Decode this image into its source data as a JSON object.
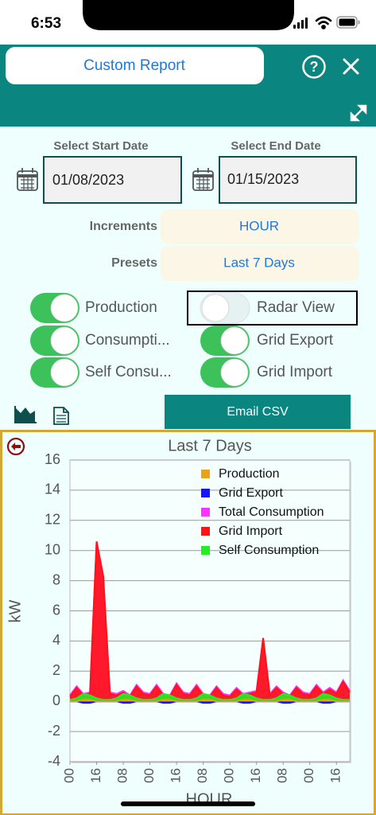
{
  "status_bar": {
    "time": "6:53"
  },
  "header": {
    "title": "Custom Report"
  },
  "form": {
    "start_date_label": "Select Start Date",
    "start_date": "01/08/2023",
    "end_date_label": "Select End Date",
    "end_date": "01/15/2023",
    "increments_label": "Increments",
    "increments": "HOUR",
    "presets_label": "Presets",
    "presets": "Last 7 Days"
  },
  "toggles": [
    {
      "label": "Production",
      "on": true
    },
    {
      "label": "Consumpti...",
      "on": true
    },
    {
      "label": "Self Consu...",
      "on": true
    },
    {
      "label": "Radar View",
      "on": false
    },
    {
      "label": "Grid Export",
      "on": true
    },
    {
      "label": "Grid Import",
      "on": true
    }
  ],
  "email_button": "Email CSV",
  "chart_data": {
    "type": "area",
    "title": "Last 7 Days",
    "x_label": "HOUR",
    "y_label": "kW",
    "x": [
      0,
      4,
      8,
      12,
      16,
      20,
      24,
      28,
      32,
      36,
      40,
      44,
      48,
      52,
      56,
      60,
      64,
      68,
      72,
      76,
      80,
      84,
      88,
      92,
      96,
      100,
      104,
      108,
      112,
      116,
      120,
      124,
      128,
      132,
      136,
      140,
      144,
      148,
      152,
      156,
      160,
      164,
      168
    ],
    "xlim": [
      0,
      168
    ],
    "xticks": [
      {
        "value": 0,
        "label": "00"
      },
      {
        "value": 16,
        "label": "16"
      },
      {
        "value": 32,
        "label": "08"
      },
      {
        "value": 48,
        "label": "00"
      },
      {
        "value": 64,
        "label": "16"
      },
      {
        "value": 80,
        "label": "08"
      },
      {
        "value": 96,
        "label": "00"
      },
      {
        "value": 112,
        "label": "16"
      },
      {
        "value": 128,
        "label": "08"
      },
      {
        "value": 144,
        "label": "00"
      },
      {
        "value": 160,
        "label": "16"
      }
    ],
    "ylim": [
      -4,
      16
    ],
    "yticks": [
      -4,
      -2,
      0,
      2,
      4,
      6,
      8,
      10,
      12,
      14,
      16
    ],
    "grid": true,
    "legend": "upper right",
    "series": [
      {
        "name": "Production",
        "color": "#e8a317",
        "values": [
          0,
          0,
          0.1,
          0.1,
          0,
          0,
          0,
          0,
          0.1,
          0.1,
          0,
          0,
          0,
          0,
          0.1,
          0.1,
          0,
          0,
          0,
          0,
          0.1,
          0.1,
          0,
          0,
          0,
          0,
          0.1,
          0.1,
          0,
          0,
          0,
          0,
          0.1,
          0.1,
          0,
          0,
          0,
          0,
          0.1,
          0.1,
          0,
          0,
          0
        ]
      },
      {
        "name": "Grid Export",
        "color": "#1414ff",
        "values": [
          0,
          0,
          -0.1,
          -0.1,
          0,
          0,
          0,
          0,
          -0.1,
          -0.1,
          0,
          0,
          0,
          0,
          -0.1,
          -0.1,
          0,
          0,
          0,
          0,
          -0.1,
          -0.1,
          0,
          0,
          0,
          0,
          -0.1,
          -0.1,
          0,
          0,
          0,
          0,
          -0.1,
          -0.1,
          0,
          0,
          0,
          0,
          -0.1,
          -0.1,
          0,
          0,
          0
        ]
      },
      {
        "name": "Total Consumption",
        "color": "#ff33ff",
        "values": [
          0.4,
          1.0,
          0.5,
          0.6,
          10.6,
          8.3,
          0.6,
          0.5,
          0.7,
          0.4,
          1.1,
          0.6,
          0.5,
          1.1,
          0.5,
          0.4,
          1.2,
          0.6,
          0.5,
          1.1,
          0.5,
          0.4,
          1.0,
          0.5,
          0.4,
          0.9,
          0.5,
          0.6,
          0.7,
          4.2,
          0.5,
          1.0,
          0.6,
          0.4,
          1.0,
          0.6,
          0.5,
          1.1,
          0.6,
          0.9,
          0.6,
          1.4,
          0.7
        ]
      },
      {
        "name": "Grid Import",
        "color": "#ff1414",
        "values": [
          0.3,
          0.9,
          0.4,
          0.5,
          10.6,
          8.3,
          0.5,
          0.4,
          0.6,
          0.3,
          1.0,
          0.5,
          0.4,
          1.0,
          0.4,
          0.3,
          1.1,
          0.5,
          0.4,
          1.0,
          0.4,
          0.3,
          0.9,
          0.4,
          0.3,
          0.8,
          0.4,
          0.5,
          0.6,
          4.2,
          0.4,
          0.9,
          0.5,
          0.3,
          0.9,
          0.5,
          0.4,
          1.0,
          0.5,
          0.8,
          0.5,
          1.3,
          0.6
        ]
      },
      {
        "name": "Self Consumption",
        "color": "#22ee22",
        "values": [
          0.1,
          0.2,
          0.5,
          0.4,
          0.2,
          0.1,
          0.1,
          0.2,
          0.5,
          0.4,
          0.2,
          0.1,
          0.1,
          0.2,
          0.5,
          0.4,
          0.2,
          0.1,
          0.1,
          0.2,
          0.5,
          0.4,
          0.2,
          0.1,
          0.1,
          0.2,
          0.5,
          0.4,
          0.2,
          0.1,
          0.1,
          0.2,
          0.5,
          0.4,
          0.2,
          0.1,
          0.1,
          0.2,
          0.5,
          0.4,
          0.2,
          0.1,
          0.1
        ]
      }
    ]
  }
}
